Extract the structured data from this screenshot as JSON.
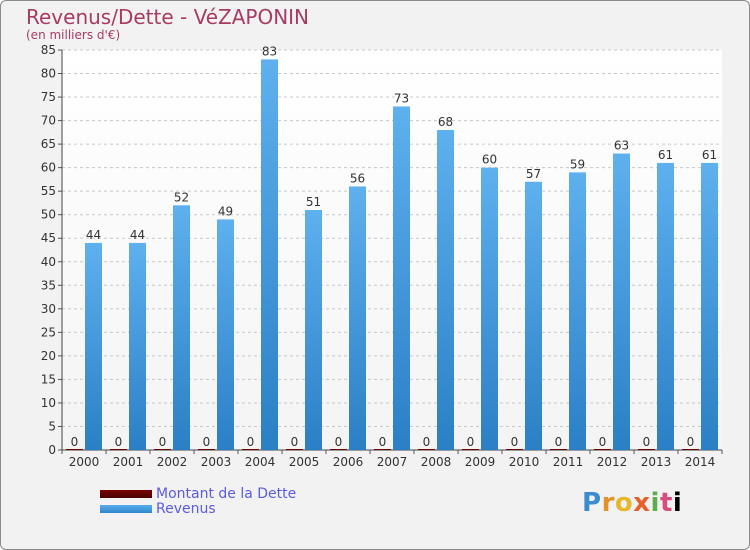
{
  "chart_data": {
    "type": "bar",
    "title": "Revenus/Dette - VéZAPONIN",
    "subtitle": "(en milliers d'€)",
    "categories": [
      "2000",
      "2001",
      "2002",
      "2003",
      "2004",
      "2005",
      "2006",
      "2007",
      "2008",
      "2009",
      "2010",
      "2011",
      "2012",
      "2013",
      "2014"
    ],
    "series": [
      {
        "name": "Montant de la Dette",
        "color": "#6b0000",
        "values": [
          0,
          0,
          0,
          0,
          0,
          0,
          0,
          0,
          0,
          0,
          0,
          0,
          0,
          0,
          0
        ]
      },
      {
        "name": "Revenus",
        "color": "#4ba3e6",
        "values": [
          44,
          44,
          52,
          49,
          83,
          51,
          56,
          73,
          68,
          60,
          57,
          59,
          63,
          61,
          61
        ]
      }
    ],
    "ylim": [
      0,
      85
    ],
    "yticks": [
      0,
      5,
      10,
      15,
      20,
      25,
      30,
      35,
      40,
      45,
      50,
      55,
      60,
      65,
      70,
      75,
      80,
      85
    ],
    "grid": true,
    "legend": "bottom-left"
  },
  "logo": {
    "letters": [
      "P",
      "r",
      "o",
      "x",
      "i",
      "t",
      "i"
    ]
  }
}
